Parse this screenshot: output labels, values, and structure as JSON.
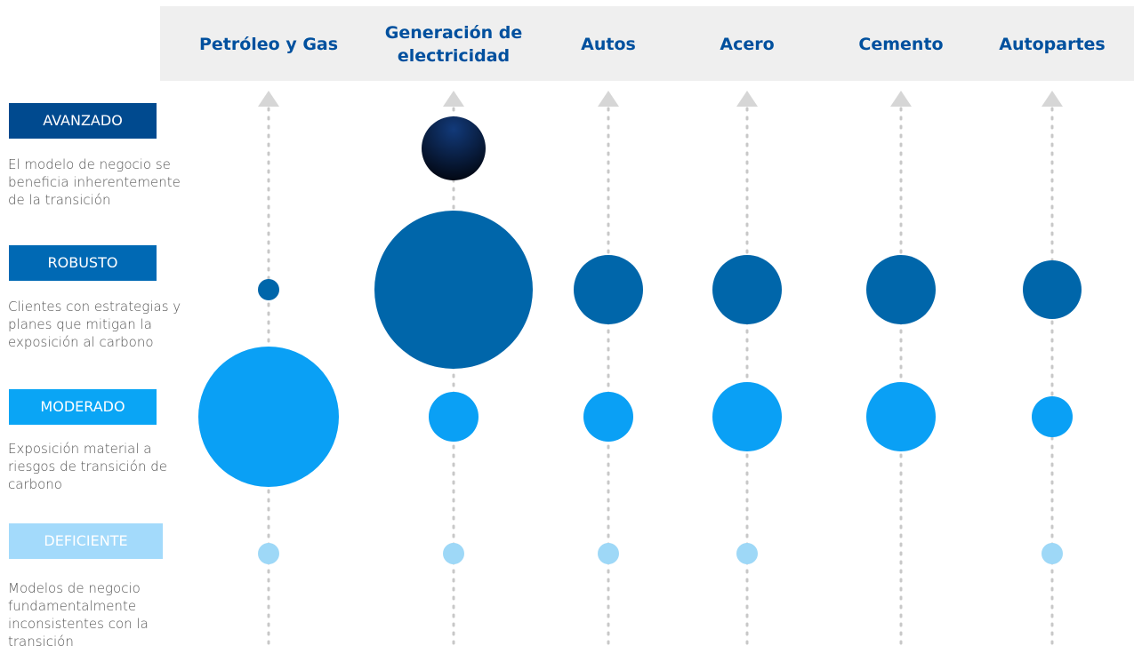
{
  "chart_data": {
    "type": "bubble",
    "categories": [
      "Petróleo y Gas",
      "Generación de electricidad",
      "Autos",
      "Acero",
      "Cemento",
      "Autopartes"
    ],
    "series": [
      {
        "name": "AVANZADO",
        "description": "El modelo de negocio se beneficia inherentemente de la transición",
        "color": "#0b2a63",
        "box_color": "#004a8f",
        "values": [
          null,
          72,
          null,
          null,
          null,
          null
        ]
      },
      {
        "name": "ROBUSTO",
        "description": "Clientes con estrategias y planes que mitigan la exposición al carbono",
        "color": "#0066aa",
        "box_color": "#0069b4",
        "values": [
          24,
          178,
          78,
          78,
          78,
          66
        ]
      },
      {
        "name": "MODERADO",
        "description": "Exposición material a riesgos de transición de carbono",
        "color": "#0aa0f5",
        "box_color": "#0aa5f5",
        "values": [
          158,
          56,
          56,
          78,
          78,
          46
        ]
      },
      {
        "name": "DEFICIENTE",
        "description": "Modelos de negocio fundamentalmente inconsistentes con la transición",
        "color": "#9ed8f7",
        "box_color": "#a3dafb",
        "values": [
          24,
          24,
          24,
          24,
          null,
          24
        ]
      }
    ]
  }
}
